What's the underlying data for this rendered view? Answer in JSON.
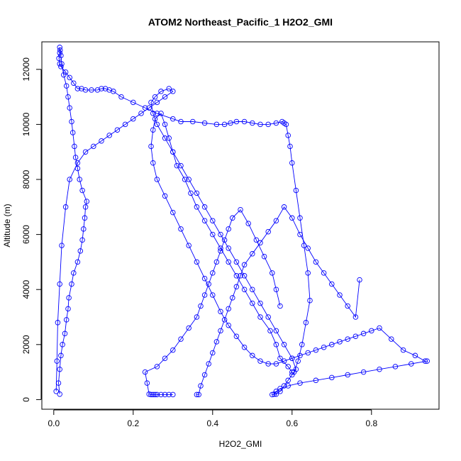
{
  "chart_data": {
    "type": "scatter",
    "title": "ATOM2 Northeast_Pacific_1 H2O2_GMI",
    "xlabel": "H2O2_GMI",
    "ylabel": "Altitude (m)",
    "xlim": [
      -0.03,
      0.97
    ],
    "ylim": [
      -350,
      13000
    ],
    "xticks": [
      "0.0",
      "0.2",
      "0.4",
      "0.6",
      "0.8"
    ],
    "xtick_values": [
      0,
      0.2,
      0.4,
      0.6,
      0.8
    ],
    "yticks": [
      "0",
      "2000",
      "4000",
      "6000",
      "8000",
      "10000",
      "12000"
    ],
    "ytick_values": [
      0,
      2000,
      4000,
      6000,
      8000,
      10000,
      12000
    ],
    "grid": false,
    "series_color": "#0000ff",
    "marker": "open-circle",
    "connected": true,
    "series": [
      {
        "x": [
          0.015,
          0.012,
          0.015,
          0.018,
          0.022,
          0.028,
          0.032,
          0.036,
          0.038,
          0.045,
          0.05,
          0.06,
          0.067,
          0.072,
          0.075,
          0.078,
          0.08,
          0.083,
          0.072,
          0.065,
          0.06,
          0.055,
          0.052,
          0.048,
          0.045,
          0.04,
          0.036,
          0.032,
          0.025,
          0.02,
          0.018,
          0.016,
          0.015,
          0.015,
          0.013,
          0.015,
          0.018,
          0.03,
          0.04,
          0.05,
          0.06,
          0.07,
          0.08,
          0.095,
          0.11,
          0.12,
          0.13,
          0.14,
          0.15,
          0.17,
          0.2,
          0.23,
          0.26,
          0.3,
          0.32,
          0.35,
          0.38,
          0.41,
          0.43,
          0.445,
          0.46,
          0.48,
          0.5,
          0.52,
          0.54,
          0.56,
          0.575,
          0.58,
          0.585,
          0.59,
          0.595,
          0.6,
          0.61,
          0.62,
          0.63,
          0.64,
          0.645,
          0.635,
          0.625,
          0.615,
          0.605
        ],
        "y": [
          200,
          600,
          1100,
          1600,
          2000,
          2400,
          2900,
          3300,
          3700,
          4200,
          4600,
          5000,
          5400,
          5800,
          6200,
          6600,
          7000,
          7200,
          7600,
          8000,
          8400,
          8800,
          9200,
          9700,
          10100,
          10600,
          11000,
          11400,
          11800,
          12200,
          12500,
          12700,
          12800,
          12600,
          12400,
          12200,
          12100,
          11900,
          11700,
          11500,
          11300,
          11300,
          11250,
          11250,
          11250,
          11300,
          11300,
          11250,
          11200,
          11000,
          10800,
          10600,
          10400,
          10200,
          10100,
          10100,
          10050,
          10000,
          10000,
          10050,
          10100,
          10100,
          10050,
          10000,
          10000,
          10050,
          10100,
          10050,
          10000,
          9600,
          9200,
          8600,
          7600,
          6600,
          5600,
          4600,
          3600,
          2800,
          2000,
          1400,
          1000
        ]
      },
      {
        "x": [
          0.6,
          0.59,
          0.57,
          0.56,
          0.545,
          0.52,
          0.5,
          0.48,
          0.46,
          0.44,
          0.42,
          0.4,
          0.38,
          0.36,
          0.345,
          0.33,
          0.31,
          0.3,
          0.29,
          0.28,
          0.27,
          0.255,
          0.25,
          0.245,
          0.25,
          0.26,
          0.28,
          0.3,
          0.32,
          0.34,
          0.36,
          0.38,
          0.4,
          0.42,
          0.44,
          0.46,
          0.48,
          0.5,
          0.52,
          0.54,
          0.56,
          0.58,
          0.6,
          0.62,
          0.64,
          0.66,
          0.68,
          0.7,
          0.72,
          0.74,
          0.76,
          0.78,
          0.8,
          0.82,
          0.85,
          0.88,
          0.91,
          0.935
        ],
        "y": [
          1000,
          1200,
          1500,
          2000,
          2500,
          3000,
          3500,
          4000,
          4500,
          5000,
          5500,
          6000,
          6500,
          7000,
          7500,
          8000,
          8500,
          9000,
          9500,
          10000,
          10400,
          10200,
          9800,
          9200,
          8600,
          8000,
          7400,
          6800,
          6200,
          5600,
          5000,
          4400,
          3800,
          3200,
          2700,
          2300,
          1900,
          1600,
          1400,
          1300,
          1300,
          1400,
          1500,
          1600,
          1700,
          1800,
          1900,
          2000,
          2100,
          2200,
          2300,
          2400,
          2500,
          2600,
          2200,
          1800,
          1600,
          1400
        ]
      },
      {
        "x": [
          0.94,
          0.9,
          0.86,
          0.82,
          0.78,
          0.74,
          0.7,
          0.66,
          0.62,
          0.59,
          0.57,
          0.56,
          0.555,
          0.55,
          0.56,
          0.57,
          0.58,
          0.59,
          0.6,
          0.61,
          0.6,
          0.58,
          0.56,
          0.54,
          0.52,
          0.5,
          0.48,
          0.46,
          0.44,
          0.42,
          0.4,
          0.38,
          0.36,
          0.34,
          0.32,
          0.3,
          0.28,
          0.26,
          0.25,
          0.245,
          0.255,
          0.27,
          0.29,
          0.3,
          0.28,
          0.26,
          0.24,
          0.22,
          0.2,
          0.18,
          0.16,
          0.14,
          0.12,
          0.1,
          0.08,
          0.06,
          0.04,
          0.03,
          0.02,
          0.015,
          0.01,
          0.008,
          0.006
        ],
        "y": [
          1400,
          1300,
          1200,
          1100,
          1000,
          900,
          800,
          700,
          600,
          500,
          400,
          300,
          200,
          180,
          200,
          300,
          500,
          700,
          900,
          1100,
          1500,
          2000,
          2500,
          3000,
          3500,
          4000,
          4500,
          5000,
          5500,
          6000,
          6500,
          7000,
          7500,
          8000,
          8500,
          9000,
          9500,
          10000,
          10400,
          10800,
          11000,
          11200,
          11300,
          11200,
          11000,
          10800,
          10600,
          10400,
          10200,
          10000,
          9800,
          9600,
          9400,
          9200,
          9000,
          8600,
          8000,
          7000,
          5600,
          4200,
          2800,
          1400,
          300
        ]
      },
      {
        "x": [
          0.3,
          0.29,
          0.28,
          0.27,
          0.26,
          0.255,
          0.25,
          0.245,
          0.24,
          0.235,
          0.23,
          0.26,
          0.28,
          0.3,
          0.32,
          0.34,
          0.36,
          0.37,
          0.38,
          0.39,
          0.4,
          0.41,
          0.42,
          0.43,
          0.44,
          0.45,
          0.47,
          0.49,
          0.51,
          0.53,
          0.55,
          0.56,
          0.57
        ],
        "y": [
          180,
          180,
          180,
          180,
          180,
          180,
          180,
          180,
          200,
          600,
          1000,
          1200,
          1500,
          1800,
          2200,
          2600,
          3000,
          3400,
          3800,
          4200,
          4600,
          5000,
          5400,
          5800,
          6200,
          6600,
          6900,
          6400,
          5800,
          5200,
          4600,
          4000,
          3400
        ]
      },
      {
        "x": [
          0.36,
          0.365,
          0.37,
          0.38,
          0.39,
          0.4,
          0.41,
          0.42,
          0.43,
          0.44,
          0.45,
          0.46,
          0.47,
          0.48,
          0.5,
          0.52,
          0.54,
          0.56,
          0.58,
          0.6,
          0.62,
          0.64,
          0.66,
          0.68,
          0.7,
          0.72,
          0.74,
          0.76,
          0.77
        ],
        "y": [
          180,
          180,
          500,
          900,
          1300,
          1700,
          2100,
          2500,
          2900,
          3300,
          3700,
          4100,
          4500,
          4900,
          5300,
          5700,
          6100,
          6500,
          7000,
          6600,
          6000,
          5500,
          5000,
          4600,
          4200,
          3800,
          3400,
          3000,
          4350
        ]
      }
    ]
  }
}
